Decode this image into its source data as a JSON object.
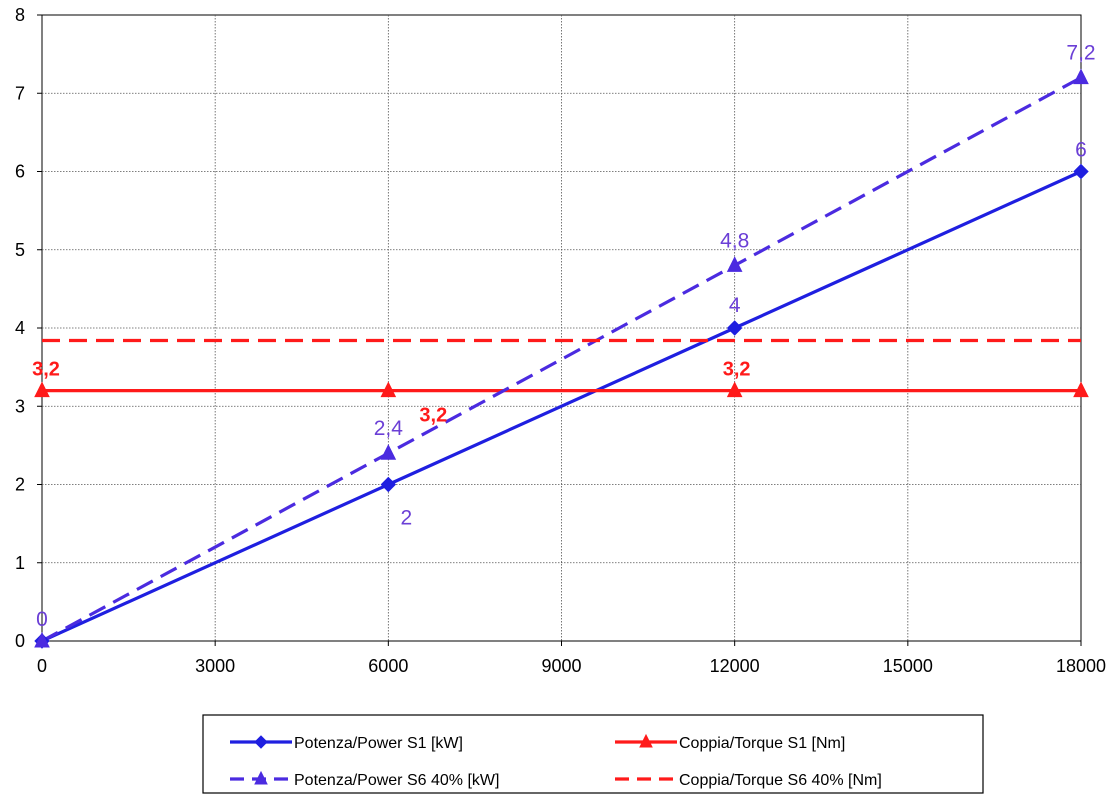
{
  "chart_data": {
    "type": "line",
    "title": "",
    "xlabel": "",
    "ylabel": "",
    "xlim": [
      0,
      18000
    ],
    "ylim": [
      0,
      8
    ],
    "x_ticks": [
      "0",
      "3000",
      "6000",
      "9000",
      "12000",
      "15000",
      "18000"
    ],
    "y_ticks": [
      "0",
      "1",
      "2",
      "3",
      "4",
      "5",
      "6",
      "7",
      "8"
    ],
    "grid": true,
    "legend_position": "bottom",
    "series": [
      {
        "name": "Potenza/Power S1 [kW]",
        "color": "#1f1fe0",
        "line_style": "solid",
        "marker": "diamond",
        "x": [
          0,
          6000,
          12000,
          18000
        ],
        "y": [
          0,
          2,
          4,
          6
        ],
        "data_labels": [
          "0",
          "2",
          "4",
          "6"
        ],
        "label_color": "#6b3fd6"
      },
      {
        "name": "Coppia/Torque S1 [Nm]",
        "color": "#ff1a1a",
        "line_style": "solid",
        "marker": "triangle",
        "x": [
          0,
          6000,
          12000,
          18000
        ],
        "y": [
          3.2,
          3.2,
          3.2,
          3.2
        ],
        "data_labels": [
          "3,2",
          "3,2",
          "3,2",
          ""
        ],
        "label_color": "#ff1a1a"
      },
      {
        "name": "Potenza/Power S6 40% [kW]",
        "color": "#4b2be0",
        "line_style": "dashed",
        "marker": "triangle",
        "x": [
          0,
          6000,
          12000,
          18000
        ],
        "y": [
          0,
          2.4,
          4.8,
          7.2
        ],
        "data_labels": [
          "",
          "2,4",
          "4,8",
          "7,2"
        ],
        "label_color": "#6b3fd6"
      },
      {
        "name": "Coppia/Torque S6 40% [Nm]",
        "color": "#ff1a1a",
        "line_style": "dashed",
        "marker": "none",
        "x": [
          0,
          18000
        ],
        "y": [
          3.84,
          3.84
        ],
        "data_labels": [],
        "label_color": "#ff1a1a"
      }
    ]
  }
}
